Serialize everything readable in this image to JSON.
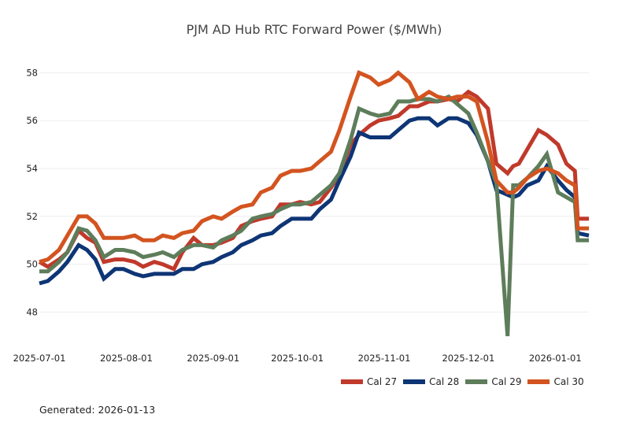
{
  "chart_data": {
    "type": "line",
    "title": "PJM AD Hub RTC Forward Power ($/MWh)",
    "xlabel": "",
    "ylabel": "",
    "ylim": [
      46.9,
      59.0
    ],
    "xlim": [
      "2025-07-01",
      "2026-01-13"
    ],
    "yticks": [
      48,
      50,
      52,
      54,
      56,
      58
    ],
    "xticks": [
      "2025-07-01",
      "2025-08-01",
      "2025-09-01",
      "2025-10-01",
      "2025-11-01",
      "2025-12-01",
      "2026-01-01"
    ],
    "grid": "horizontal",
    "legend_position": "bottom-right",
    "x": [
      "2025-07-01",
      "2025-07-04",
      "2025-07-08",
      "2025-07-11",
      "2025-07-15",
      "2025-07-18",
      "2025-07-21",
      "2025-07-24",
      "2025-07-28",
      "2025-07-31",
      "2025-08-04",
      "2025-08-07",
      "2025-08-11",
      "2025-08-14",
      "2025-08-18",
      "2025-08-21",
      "2025-08-25",
      "2025-08-28",
      "2025-09-01",
      "2025-09-04",
      "2025-09-08",
      "2025-09-11",
      "2025-09-15",
      "2025-09-18",
      "2025-09-22",
      "2025-09-25",
      "2025-09-29",
      "2025-10-02",
      "2025-10-06",
      "2025-10-09",
      "2025-10-13",
      "2025-10-16",
      "2025-10-20",
      "2025-10-23",
      "2025-10-27",
      "2025-10-30",
      "2025-11-03",
      "2025-11-06",
      "2025-11-10",
      "2025-11-13",
      "2025-11-17",
      "2025-11-20",
      "2025-11-24",
      "2025-11-27",
      "2025-12-01",
      "2025-12-04",
      "2025-12-08",
      "2025-12-11",
      "2025-12-15",
      "2025-12-17",
      "2025-12-19",
      "2025-12-22",
      "2025-12-26",
      "2025-12-29",
      "2026-01-02",
      "2026-01-05",
      "2026-01-08",
      "2026-01-09",
      "2026-01-13"
    ],
    "series": [
      {
        "name": "Cal 27",
        "color": "#c0392b",
        "values": [
          50.1,
          49.9,
          50.2,
          50.5,
          51.4,
          51.1,
          50.9,
          50.1,
          50.2,
          50.2,
          50.1,
          49.9,
          50.1,
          50.0,
          49.8,
          50.5,
          51.1,
          50.8,
          50.8,
          50.9,
          51.1,
          51.6,
          51.8,
          51.9,
          52.0,
          52.5,
          52.5,
          52.6,
          52.5,
          52.6,
          53.2,
          53.7,
          55.0,
          55.4,
          55.8,
          56.0,
          56.1,
          56.2,
          56.6,
          56.6,
          56.8,
          56.8,
          56.9,
          56.8,
          57.2,
          57.0,
          56.5,
          54.2,
          53.8,
          54.1,
          54.2,
          54.8,
          55.6,
          55.4,
          55.0,
          54.2,
          53.9,
          51.9,
          51.9
        ]
      },
      {
        "name": "Cal 28",
        "color": "#0e3575",
        "values": [
          49.2,
          49.3,
          49.7,
          50.1,
          50.8,
          50.6,
          50.2,
          49.4,
          49.8,
          49.8,
          49.6,
          49.5,
          49.6,
          49.6,
          49.6,
          49.8,
          49.8,
          50.0,
          50.1,
          50.3,
          50.5,
          50.8,
          51.0,
          51.2,
          51.3,
          51.6,
          51.9,
          51.9,
          51.9,
          52.3,
          52.7,
          53.5,
          54.5,
          55.5,
          55.3,
          55.3,
          55.3,
          55.6,
          56.0,
          56.1,
          56.1,
          55.8,
          56.1,
          56.1,
          55.9,
          55.4,
          54.3,
          53.1,
          52.9,
          52.8,
          52.9,
          53.3,
          53.5,
          54.1,
          53.5,
          53.1,
          52.8,
          51.3,
          51.2
        ]
      },
      {
        "name": "Cal 29",
        "color": "#5e7d5b",
        "values": [
          49.7,
          49.7,
          50.1,
          50.5,
          51.5,
          51.4,
          51.0,
          50.3,
          50.6,
          50.6,
          50.5,
          50.3,
          50.4,
          50.5,
          50.3,
          50.6,
          50.8,
          50.8,
          50.7,
          51.0,
          51.2,
          51.4,
          51.9,
          52.0,
          52.1,
          52.3,
          52.5,
          52.5,
          52.6,
          52.9,
          53.3,
          53.8,
          55.2,
          56.5,
          56.3,
          56.2,
          56.3,
          56.8,
          56.8,
          56.9,
          56.9,
          56.8,
          57.0,
          56.7,
          56.3,
          55.5,
          54.3,
          53.4,
          47.0,
          53.3,
          53.3,
          53.6,
          54.1,
          54.6,
          53.0,
          52.8,
          52.6,
          51.0,
          51.0
        ]
      },
      {
        "name": "Cal 30",
        "color": "#d35420",
        "values": [
          50.1,
          50.2,
          50.6,
          51.2,
          52.0,
          52.0,
          51.7,
          51.1,
          51.1,
          51.1,
          51.2,
          51.0,
          51.0,
          51.2,
          51.1,
          51.3,
          51.4,
          51.8,
          52.0,
          51.9,
          52.2,
          52.4,
          52.5,
          53.0,
          53.2,
          53.7,
          53.9,
          53.9,
          54.0,
          54.3,
          54.7,
          55.6,
          57.0,
          58.0,
          57.8,
          57.5,
          57.7,
          58.0,
          57.6,
          56.9,
          57.2,
          57.0,
          56.9,
          57.0,
          57.0,
          56.8,
          55.1,
          53.5,
          53.0,
          53.0,
          53.2,
          53.6,
          53.9,
          54.0,
          53.8,
          53.5,
          53.3,
          51.5,
          51.5
        ]
      }
    ]
  },
  "footer": {
    "generated": "Generated: 2026-01-13"
  }
}
